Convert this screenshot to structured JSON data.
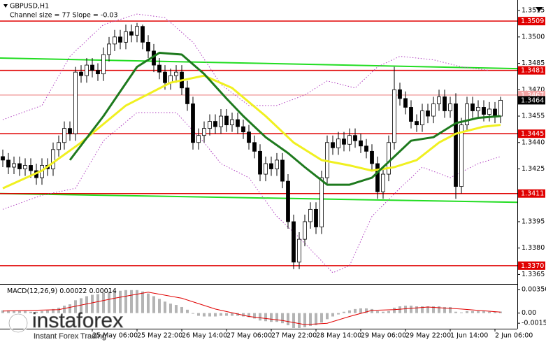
{
  "chart_data": [
    {
      "type": "candlestick",
      "title": "GBPUSD,H1",
      "subtitle": "Channel size = 77 Slope = -0.03",
      "xlim": [
        -0.5,
        92
      ],
      "ylim": [
        1.336,
        1.3521
      ],
      "yticks": [
        1.3515,
        {
          "value": 1.35,
          "label": "1.3500"
        },
        1.3485,
        {
          "value": 1.347,
          "label": "1.3470"
        },
        1.3455,
        {
          "value": 1.344,
          "label": "1.3440"
        },
        1.3425,
        {
          "value": 1.341,
          "label": "1.3410"
        },
        1.3395,
        {
          "value": 1.338,
          "label": "1.3380"
        },
        1.3365
      ],
      "xticks": [
        {
          "value": 16,
          "label": "25 May 06:00"
        },
        {
          "value": 24,
          "label": "25 May 22:00"
        },
        {
          "value": 32,
          "label": "26 May 14:00"
        },
        {
          "value": 40,
          "label": "27 May 06:00"
        },
        {
          "value": 48,
          "label": "27 May 22:00"
        },
        {
          "value": 56,
          "label": "28 May 14:00"
        },
        {
          "value": 64,
          "label": "29 May 06:00"
        },
        {
          "value": 72,
          "label": "29 May 22:00"
        },
        {
          "value": 80,
          "label": "1 Jun 14:00"
        },
        {
          "value": 88,
          "label": "2 Jun 06:00"
        }
      ],
      "up_color": "#ffffff",
      "down_color": "#000000",
      "wick_color": "#000000",
      "open": [
        1.3432,
        1.343,
        1.3426,
        1.3428,
        1.3425,
        1.3427,
        1.3424,
        1.342,
        1.3427,
        1.3425,
        1.3436,
        1.344,
        1.3448,
        1.3445,
        1.348,
        1.3478,
        1.3484,
        1.3481,
        1.3479,
        1.349,
        1.3496,
        1.35,
        1.3497,
        1.3503,
        1.3501,
        1.3506,
        1.3497,
        1.3492,
        1.3484,
        1.348,
        1.3474,
        1.3478,
        1.348,
        1.3471,
        1.3462,
        1.344,
        1.3444,
        1.3448,
        1.3452,
        1.3449,
        1.3455,
        1.345,
        1.3453,
        1.3449,
        1.3446,
        1.344,
        1.3435,
        1.3422,
        1.3428,
        1.3425,
        1.343,
        1.3418,
        1.3395,
        1.3372,
        1.3385,
        1.3395,
        1.3402,
        1.3392,
        1.342,
        1.344,
        1.3437,
        1.3442,
        1.3439,
        1.3444,
        1.3441,
        1.3438,
        1.3435,
        1.3428,
        1.3412,
        1.3422,
        1.344,
        1.347,
        1.3465,
        1.346,
        1.3452,
        1.345,
        1.3458,
        1.3455,
        1.3462,
        1.3466,
        1.3458,
        1.3462,
        1.3415,
        1.345,
        1.3462,
        1.3458,
        1.346,
        1.3456,
        1.3459,
        1.3455
      ],
      "high": [
        1.3436,
        1.3434,
        1.3432,
        1.3432,
        1.3431,
        1.3431,
        1.3428,
        1.3431,
        1.3431,
        1.344,
        1.3444,
        1.3452,
        1.3452,
        1.3483,
        1.3484,
        1.3488,
        1.3488,
        1.3485,
        1.3494,
        1.35,
        1.3504,
        1.3504,
        1.3507,
        1.3507,
        1.3508,
        1.3507,
        1.3501,
        1.3496,
        1.3488,
        1.3484,
        1.3482,
        1.3484,
        1.3484,
        1.3475,
        1.3466,
        1.3448,
        1.3452,
        1.3456,
        1.3456,
        1.3459,
        1.3459,
        1.3457,
        1.3457,
        1.3453,
        1.345,
        1.3444,
        1.3439,
        1.3432,
        1.3432,
        1.3434,
        1.3434,
        1.3422,
        1.3399,
        1.3389,
        1.3399,
        1.3406,
        1.3406,
        1.3424,
        1.3444,
        1.3444,
        1.3446,
        1.3446,
        1.3448,
        1.3448,
        1.3445,
        1.3442,
        1.3439,
        1.3432,
        1.3426,
        1.3444,
        1.3483,
        1.3474,
        1.3469,
        1.3464,
        1.3456,
        1.3462,
        1.3462,
        1.3466,
        1.347,
        1.347,
        1.3466,
        1.3468,
        1.3454,
        1.3466,
        1.3466,
        1.3464,
        1.3464,
        1.3463,
        1.3463,
        1.3466
      ],
      "low": [
        1.3426,
        1.3422,
        1.3422,
        1.3421,
        1.3421,
        1.342,
        1.3416,
        1.3416,
        1.3421,
        1.3421,
        1.3432,
        1.3436,
        1.3441,
        1.3441,
        1.3474,
        1.3474,
        1.3477,
        1.3475,
        1.3475,
        1.3486,
        1.3492,
        1.3493,
        1.3493,
        1.3497,
        1.3497,
        1.3493,
        1.3488,
        1.348,
        1.3476,
        1.347,
        1.347,
        1.3474,
        1.3467,
        1.3458,
        1.3436,
        1.3436,
        1.344,
        1.3444,
        1.3445,
        1.3445,
        1.3446,
        1.3446,
        1.3445,
        1.3442,
        1.3436,
        1.3431,
        1.3418,
        1.3418,
        1.3421,
        1.3421,
        1.3414,
        1.3391,
        1.3368,
        1.3368,
        1.3381,
        1.3391,
        1.3388,
        1.3388,
        1.3416,
        1.3433,
        1.3433,
        1.3435,
        1.3435,
        1.3437,
        1.3434,
        1.3431,
        1.3424,
        1.3408,
        1.3408,
        1.3418,
        1.3436,
        1.3461,
        1.3456,
        1.3448,
        1.3446,
        1.3446,
        1.3451,
        1.3451,
        1.3458,
        1.3454,
        1.3454,
        1.3408,
        1.3411,
        1.3446,
        1.3454,
        1.3454,
        1.3452,
        1.3452,
        1.3451,
        1.3451
      ],
      "close": [
        1.343,
        1.3426,
        1.3428,
        1.3425,
        1.3427,
        1.3424,
        1.342,
        1.3427,
        1.3425,
        1.3436,
        1.344,
        1.3448,
        1.3445,
        1.348,
        1.3478,
        1.3484,
        1.3481,
        1.3479,
        1.349,
        1.3496,
        1.35,
        1.3497,
        1.3503,
        1.3501,
        1.3506,
        1.3497,
        1.3492,
        1.3484,
        1.348,
        1.3474,
        1.3478,
        1.348,
        1.3471,
        1.3462,
        1.344,
        1.3444,
        1.3448,
        1.3452,
        1.3449,
        1.3455,
        1.345,
        1.3453,
        1.3449,
        1.3446,
        1.344,
        1.3435,
        1.3422,
        1.3428,
        1.3425,
        1.343,
        1.3418,
        1.3395,
        1.3372,
        1.3385,
        1.3395,
        1.3402,
        1.3392,
        1.342,
        1.344,
        1.3437,
        1.3442,
        1.3439,
        1.3444,
        1.3441,
        1.3438,
        1.3435,
        1.3428,
        1.3412,
        1.3422,
        1.344,
        1.347,
        1.3465,
        1.346,
        1.3452,
        1.345,
        1.3458,
        1.3455,
        1.3462,
        1.3466,
        1.3458,
        1.3462,
        1.3415,
        1.345,
        1.3462,
        1.3458,
        1.346,
        1.3456,
        1.3459,
        1.3455,
        1.3464
      ],
      "lines": [
        {
          "color": "#b040c0",
          "style": "dotted",
          "width": 1,
          "x": [
            0,
            7,
            12,
            18,
            24,
            29,
            34,
            39,
            44,
            49,
            54,
            58,
            63,
            67,
            71,
            77,
            82,
            87
          ],
          "values": [
            1.3453,
            1.3461,
            1.3489,
            1.3507,
            1.3513,
            1.3511,
            1.3497,
            1.3473,
            1.3461,
            1.3461,
            1.3467,
            1.3475,
            1.3471,
            1.3483,
            1.3489,
            1.3487,
            1.3483,
            1.3481
          ]
        },
        {
          "color": "#b040c0",
          "style": "dotted",
          "width": 1,
          "x": [
            0,
            7,
            13,
            18,
            24,
            31,
            36,
            39,
            44,
            49,
            53,
            59,
            62,
            66,
            71,
            75,
            80,
            85,
            89
          ],
          "values": [
            1.3402,
            1.341,
            1.3414,
            1.3441,
            1.3457,
            1.3457,
            1.344,
            1.3428,
            1.342,
            1.3398,
            1.3386,
            1.3366,
            1.337,
            1.3398,
            1.3414,
            1.3426,
            1.342,
            1.3428,
            1.3432
          ]
        },
        {
          "color": "#f0f020",
          "style": "solid",
          "width": 3,
          "x": [
            0,
            7,
            14,
            22,
            30,
            36,
            41,
            47,
            52,
            57,
            62,
            66,
            70,
            74,
            78,
            81,
            86,
            89
          ],
          "values": [
            1.3414,
            1.3424,
            1.344,
            1.3461,
            1.3474,
            1.3478,
            1.3471,
            1.3455,
            1.344,
            1.343,
            1.3427,
            1.3424,
            1.3426,
            1.343,
            1.344,
            1.3445,
            1.3449,
            1.345
          ]
        },
        {
          "color": "#1e7a1e",
          "style": "solid",
          "width": 3,
          "x": [
            12,
            18,
            24,
            28,
            32,
            36,
            40,
            43,
            47,
            51,
            54,
            58,
            62,
            66,
            70,
            73,
            77,
            81,
            85,
            89
          ],
          "values": [
            1.343,
            1.3455,
            1.3483,
            1.3491,
            1.349,
            1.3479,
            1.3465,
            1.3455,
            1.3443,
            1.3434,
            1.3426,
            1.3416,
            1.3416,
            1.342,
            1.3432,
            1.3441,
            1.3443,
            1.3451,
            1.3454,
            1.3455
          ]
        }
      ],
      "channel": {
        "color": "#22dd22",
        "upper": [
          1.3488,
          1.3482
        ],
        "lower": [
          1.3411,
          1.3406
        ]
      },
      "levels": [
        {
          "value": 1.3509,
          "color": "#e00000"
        },
        {
          "value": 1.3481,
          "color": "#e00000"
        },
        {
          "value": 1.3467,
          "color": "#f2a4a4"
        },
        {
          "value": 1.3464,
          "color": "#000000"
        },
        {
          "value": 1.3445,
          "color": "#e00000"
        },
        {
          "value": 1.3411,
          "color": "#e00000"
        },
        {
          "value": 1.337,
          "label": "1.3370",
          "color": "#e00000"
        }
      ]
    },
    {
      "type": "macd",
      "title": "MACD(12,26,9)",
      "readings": [
        0.00022,
        0.00014
      ],
      "ylim": [
        -0.002,
        0.004
      ],
      "yticks": [
        {
          "value": 0.0035,
          "label": "0.00350"
        },
        {
          "value": 0,
          "label": "0.00"
        },
        {
          "value": -0.0015,
          "label": "-0.00150"
        }
      ],
      "bar_color": "#b4b4b4",
      "values": [
        0.0004,
        0.0004,
        0.0003,
        0.0003,
        0.0003,
        0.0002,
        0.0002,
        0.0003,
        0.0004,
        0.0006,
        0.0008,
        0.0011,
        0.0013,
        0.0019,
        0.0022,
        0.0025,
        0.0027,
        0.0028,
        0.003,
        0.0032,
        0.0033,
        0.0033,
        0.0034,
        0.0034,
        0.0034,
        0.0032,
        0.0029,
        0.0025,
        0.0021,
        0.0017,
        0.0014,
        0.0012,
        0.0009,
        0.0005,
        -0.0001,
        -0.0004,
        -0.0005,
        -0.0005,
        -0.0005,
        -0.0004,
        -0.0004,
        -0.0004,
        -0.0004,
        -0.0005,
        -0.0006,
        -0.0008,
        -0.0011,
        -0.0012,
        -0.0013,
        -0.0013,
        -0.0015,
        -0.0018,
        -0.0022,
        -0.0022,
        -0.0021,
        -0.0019,
        -0.0018,
        -0.0014,
        -0.0009,
        -0.0005,
        -0.0002,
        0.0002,
        0.0004,
        0.0006,
        0.0007,
        0.0007,
        0.0006,
        0.0003,
        0.0002,
        0.0003,
        0.0008,
        0.001,
        0.0011,
        0.0011,
        0.001,
        0.001,
        0.001,
        0.001,
        0.001,
        0.0009,
        0.0009,
        0.0002,
        0.0001,
        0.0003,
        0.0003,
        0.0003,
        0.0003,
        0.0002,
        0.0002,
        0.00022
      ],
      "signal": {
        "color": "#e00000",
        "x": [
          0,
          10,
          20,
          26,
          32,
          38,
          44,
          50,
          54,
          58,
          62,
          66,
          70,
          76,
          82,
          89
        ],
        "values": [
          0.0003,
          0.0005,
          0.0022,
          0.0031,
          0.0022,
          0.0006,
          -0.0005,
          -0.0011,
          -0.0017,
          -0.0015,
          -0.0005,
          0.0004,
          0.0005,
          0.0009,
          0.0006,
          0.00014
        ]
      }
    }
  ],
  "watermark": {
    "brand": "instaforex",
    "slogan": "Instant Forex Trading"
  }
}
